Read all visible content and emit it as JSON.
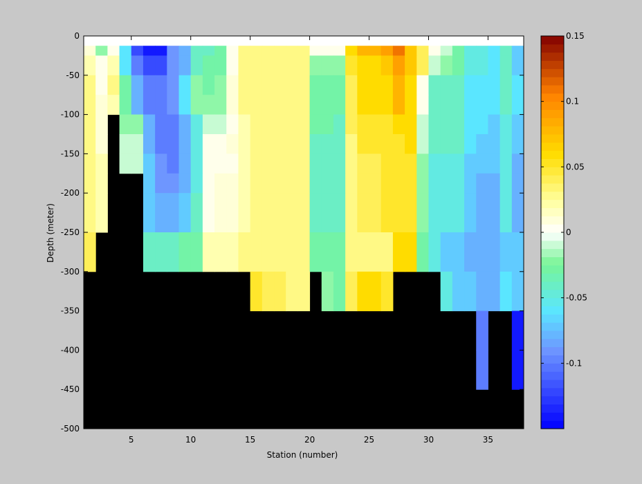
{
  "chart_data": {
    "type": "heatmap",
    "title": "",
    "xlabel": "Station (number)",
    "ylabel": "Depth (meter)",
    "xlim": [
      1,
      38
    ],
    "ylim": [
      -500,
      0
    ],
    "x_ticks": [
      5,
      10,
      15,
      20,
      25,
      30,
      35
    ],
    "y_ticks": [
      0,
      -50,
      -100,
      -150,
      -200,
      -250,
      -300,
      -350,
      -400,
      -450,
      -500
    ],
    "colorbar": {
      "range": [
        -0.15,
        0.15
      ],
      "ticks": [
        0.15,
        0.1,
        0.05,
        0,
        -0.05,
        -0.1
      ],
      "colormap": "jet-like with white center"
    },
    "background_color": "#000000",
    "stations": [
      1,
      2,
      3,
      4,
      5,
      6,
      7,
      8,
      9,
      10,
      11,
      12,
      13,
      14,
      15,
      16,
      17,
      18,
      19,
      20,
      21,
      22,
      23,
      24,
      25,
      26,
      27,
      28,
      29,
      30,
      31,
      32,
      33,
      34,
      35,
      36,
      37
    ],
    "depth_levels": [
      0,
      -12.5,
      -25,
      -50,
      -75,
      -100,
      -125,
      -150,
      -175,
      -200,
      -250,
      -300,
      -350,
      -400
    ],
    "values": [
      [
        0,
        0,
        0,
        0,
        0,
        0,
        0,
        0,
        0,
        0,
        0,
        0,
        0,
        0,
        0,
        0,
        0,
        0,
        0,
        0,
        0,
        0,
        0,
        0,
        0,
        0,
        0,
        0,
        0,
        0,
        0,
        0,
        0,
        0,
        0,
        0,
        0
      ],
      [
        0.01,
        -0.02,
        0.005,
        -0.06,
        -0.12,
        -0.14,
        -0.14,
        -0.09,
        -0.08,
        -0.04,
        -0.04,
        -0.03,
        0.005,
        0.03,
        0.03,
        0.03,
        0.03,
        0.03,
        0.03,
        0.005,
        0.005,
        0.005,
        0.06,
        0.08,
        0.08,
        0.09,
        0.11,
        0.07,
        0.04,
        0.005,
        -0.01,
        -0.03,
        -0.05,
        -0.05,
        -0.06,
        -0.04,
        -0.07
      ],
      [
        0.02,
        0.005,
        0.02,
        -0.06,
        -0.1,
        -0.12,
        -0.12,
        -0.09,
        -0.08,
        -0.04,
        -0.03,
        -0.03,
        0.005,
        0.03,
        0.03,
        0.03,
        0.03,
        0.03,
        0.03,
        -0.02,
        -0.02,
        -0.02,
        0.05,
        0.06,
        0.06,
        0.07,
        0.09,
        0.07,
        0.04,
        -0.01,
        -0.02,
        -0.03,
        -0.05,
        -0.05,
        -0.06,
        -0.04,
        -0.07
      ],
      [
        0.03,
        0.005,
        0.03,
        -0.03,
        -0.08,
        -0.1,
        -0.1,
        -0.09,
        -0.06,
        -0.02,
        -0.03,
        -0.02,
        0.01,
        0.03,
        0.03,
        0.03,
        0.03,
        0.03,
        0.03,
        -0.03,
        -0.03,
        -0.03,
        0.04,
        0.06,
        0.06,
        0.06,
        0.08,
        0.06,
        0.005,
        -0.04,
        -0.04,
        -0.04,
        -0.06,
        -0.06,
        -0.06,
        -0.04,
        -0.06
      ],
      [
        0.03,
        0.01,
        0.02,
        -0.03,
        -0.08,
        -0.1,
        -0.1,
        -0.09,
        -0.06,
        -0.02,
        -0.02,
        -0.02,
        0.01,
        0.03,
        0.03,
        0.03,
        0.03,
        0.03,
        0.03,
        -0.03,
        -0.03,
        -0.03,
        0.04,
        0.06,
        0.06,
        0.06,
        0.08,
        0.06,
        0.005,
        -0.04,
        -0.04,
        -0.04,
        -0.06,
        -0.06,
        -0.06,
        -0.04,
        -0.06
      ],
      [
        0.03,
        0.01,
        null,
        -0.02,
        -0.02,
        -0.08,
        -0.1,
        -0.1,
        -0.08,
        -0.05,
        -0.01,
        -0.01,
        0.005,
        0.02,
        0.03,
        0.03,
        0.03,
        0.03,
        0.03,
        -0.03,
        -0.03,
        -0.04,
        0.04,
        0.05,
        0.05,
        0.05,
        0.06,
        0.06,
        -0.01,
        -0.04,
        -0.04,
        -0.04,
        -0.06,
        -0.06,
        -0.07,
        -0.05,
        -0.07
      ],
      [
        0.03,
        0.01,
        null,
        -0.01,
        -0.01,
        -0.08,
        -0.1,
        -0.1,
        -0.08,
        -0.05,
        0.005,
        0.005,
        0.01,
        0.02,
        0.03,
        0.03,
        0.03,
        0.03,
        0.03,
        -0.04,
        -0.04,
        -0.04,
        0.03,
        0.05,
        0.05,
        0.05,
        0.05,
        0.06,
        -0.01,
        -0.04,
        -0.04,
        -0.04,
        -0.06,
        -0.07,
        -0.07,
        -0.05,
        -0.07
      ],
      [
        0.03,
        0.02,
        null,
        -0.01,
        -0.01,
        -0.07,
        -0.09,
        -0.1,
        -0.08,
        -0.05,
        0.005,
        0.005,
        0.005,
        0.02,
        0.03,
        0.03,
        0.03,
        0.03,
        0.03,
        -0.04,
        -0.04,
        -0.04,
        0.03,
        0.04,
        0.04,
        0.05,
        0.05,
        0.05,
        -0.02,
        -0.05,
        -0.05,
        -0.05,
        -0.07,
        -0.07,
        -0.07,
        -0.05,
        -0.08
      ],
      [
        0.03,
        0.02,
        null,
        null,
        null,
        -0.07,
        -0.09,
        -0.09,
        -0.08,
        -0.05,
        0.005,
        0.01,
        0.01,
        0.02,
        0.03,
        0.03,
        0.03,
        0.03,
        0.03,
        -0.04,
        -0.04,
        -0.04,
        0.03,
        0.04,
        0.04,
        0.05,
        0.05,
        0.05,
        -0.02,
        -0.05,
        -0.05,
        -0.05,
        -0.07,
        -0.08,
        -0.08,
        -0.05,
        -0.08
      ],
      [
        0.03,
        0.02,
        null,
        null,
        null,
        -0.07,
        -0.08,
        -0.08,
        -0.07,
        -0.04,
        0.005,
        0.01,
        0.01,
        0.02,
        0.03,
        0.03,
        0.03,
        0.03,
        0.03,
        -0.04,
        -0.04,
        -0.04,
        0.03,
        0.04,
        0.04,
        0.05,
        0.05,
        0.05,
        -0.02,
        -0.05,
        -0.05,
        -0.05,
        -0.07,
        -0.08,
        -0.08,
        -0.05,
        -0.08
      ],
      [
        0.04,
        null,
        null,
        null,
        null,
        -0.04,
        -0.04,
        -0.04,
        -0.03,
        -0.03,
        0.02,
        0.02,
        0.02,
        0.03,
        0.03,
        0.03,
        0.03,
        0.03,
        0.03,
        -0.03,
        -0.03,
        -0.03,
        0.03,
        0.03,
        0.03,
        0.03,
        0.06,
        0.06,
        -0.03,
        -0.05,
        -0.07,
        -0.07,
        -0.08,
        -0.08,
        -0.08,
        -0.07,
        -0.07
      ],
      [
        null,
        null,
        null,
        null,
        null,
        null,
        null,
        null,
        null,
        null,
        null,
        null,
        null,
        null,
        0.05,
        0.04,
        0.04,
        0.03,
        0.03,
        null,
        -0.02,
        -0.03,
        0.04,
        0.06,
        0.06,
        0.05,
        null,
        null,
        null,
        null,
        -0.05,
        -0.07,
        -0.07,
        -0.08,
        -0.08,
        -0.06,
        -0.07
      ],
      [
        null,
        null,
        null,
        null,
        null,
        null,
        null,
        null,
        null,
        null,
        null,
        null,
        null,
        null,
        null,
        null,
        null,
        null,
        null,
        null,
        null,
        null,
        null,
        null,
        null,
        null,
        null,
        null,
        null,
        null,
        null,
        null,
        null,
        -0.1,
        null,
        null,
        -0.14
      ],
      [
        null,
        null,
        null,
        null,
        null,
        null,
        null,
        null,
        null,
        null,
        null,
        null,
        null,
        null,
        null,
        null,
        null,
        null,
        null,
        null,
        null,
        null,
        null,
        null,
        null,
        null,
        null,
        null,
        null,
        null,
        null,
        null,
        null,
        -0.1,
        null,
        null,
        -0.14
      ]
    ]
  }
}
